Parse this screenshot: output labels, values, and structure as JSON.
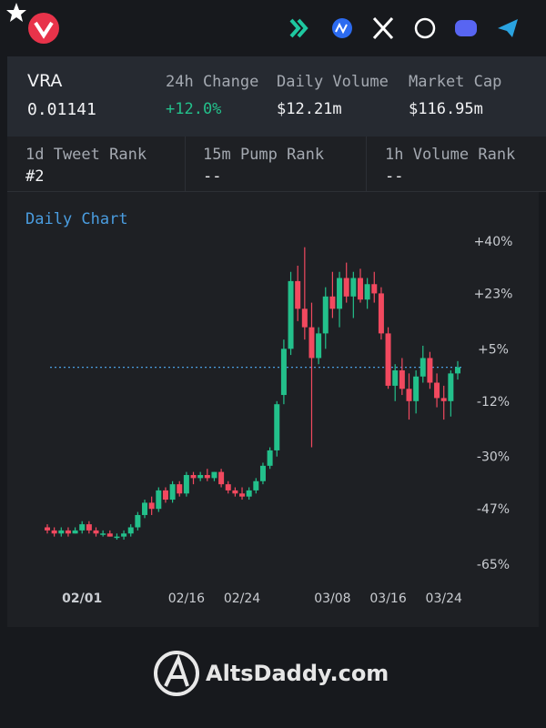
{
  "stats": {
    "symbol": "VRA",
    "price": "0.01141",
    "change_label": "24h Change",
    "change": "+12.0%",
    "volume_label": "Daily Volume",
    "volume": "$12.21m",
    "cap_label": "Market Cap",
    "cap": "$116.95m"
  },
  "ranks": [
    {
      "label": "1d Tweet Rank",
      "value": "#2"
    },
    {
      "label": "15m Pump Rank",
      "value": "--"
    },
    {
      "label": "1h Volume Rank",
      "value": "--"
    }
  ],
  "chart_data": {
    "type": "candlestick",
    "title": "Daily Chart",
    "categories": [
      null,
      null,
      null,
      null,
      null,
      "02/01",
      null,
      null,
      null,
      null,
      null,
      null,
      null,
      null,
      null,
      null,
      null,
      null,
      null,
      null,
      "02/16",
      null,
      null,
      null,
      null,
      null,
      null,
      null,
      "02/24",
      null,
      null,
      null,
      null,
      null,
      null,
      null,
      null,
      null,
      null,
      null,
      null,
      "03/08",
      null,
      null,
      null,
      null,
      null,
      null,
      null,
      "03/16",
      null,
      null,
      null,
      null,
      null,
      null,
      null,
      "03/24",
      null,
      null
    ],
    "open": [
      -53,
      -54,
      -55,
      -54,
      -55,
      -54,
      -52,
      -54,
      -55,
      -55,
      -56,
      -56,
      -55,
      -53,
      -49,
      -45,
      -47,
      -41,
      -44,
      -39,
      -42,
      -36,
      -37,
      -36,
      -37,
      -35,
      -39,
      -41,
      -42,
      -43,
      -41,
      -38,
      -33,
      -28,
      -10,
      5,
      27,
      18,
      12,
      2,
      10,
      22,
      18,
      28,
      22,
      28,
      21,
      26,
      23,
      10,
      -7,
      -2,
      -8,
      -12,
      -4,
      2,
      -6,
      -11,
      -12,
      -3
    ],
    "high": [
      -52,
      -53,
      -53,
      -53,
      -53,
      -51,
      -51,
      -53,
      -54,
      -54,
      -55,
      -54,
      -52,
      -48,
      -44,
      -43,
      -40,
      -40,
      -38,
      -38,
      -35,
      -35,
      -35,
      -34,
      -35,
      -34,
      -38,
      -40,
      -40,
      -40,
      -37,
      -32,
      -27,
      -12,
      8,
      30,
      32,
      38,
      20,
      12,
      25,
      30,
      30,
      33,
      30,
      31,
      28,
      30,
      25,
      12,
      0,
      2,
      -3,
      -2,
      6,
      4,
      -3,
      -7,
      -2,
      1
    ],
    "low": [
      -55,
      -56,
      -56,
      -56,
      -55,
      -55,
      -55,
      -56,
      -56,
      -56,
      -57,
      -57,
      -56,
      -54,
      -50,
      -49,
      -48,
      -45,
      -45,
      -43,
      -43,
      -39,
      -38,
      -38,
      -38,
      -40,
      -42,
      -43,
      -44,
      -44,
      -42,
      -39,
      -34,
      -30,
      -13,
      3,
      14,
      8,
      -27,
      0,
      5,
      15,
      12,
      20,
      15,
      20,
      18,
      20,
      8,
      -8,
      -12,
      -10,
      -18,
      -16,
      -6,
      -8,
      -14,
      -18,
      -17,
      -5
    ],
    "close": [
      -54,
      -55,
      -54,
      -55,
      -54,
      -52,
      -54,
      -55,
      -55,
      -56,
      -56,
      -55,
      -53,
      -49,
      -45,
      -47,
      -41,
      -44,
      -39,
      -42,
      -36,
      -37,
      -36,
      -37,
      -35,
      -39,
      -41,
      -42,
      -43,
      -41,
      -38,
      -33,
      -28,
      -13,
      5,
      27,
      18,
      12,
      2,
      10,
      22,
      18,
      28,
      22,
      28,
      21,
      26,
      23,
      10,
      -7,
      -2,
      -8,
      -12,
      -4,
      2,
      -6,
      -11,
      -12,
      -3,
      -1
    ],
    "up_color": "#23c08b",
    "down_color": "#f2495f",
    "price_line": -1,
    "ylim": [
      -70,
      45
    ],
    "yticks": [
      {
        "value": 40,
        "label": "+40%"
      },
      {
        "value": 23,
        "label": "+23%"
      },
      {
        "value": 5,
        "label": "+5%"
      },
      {
        "value": -12,
        "label": "-12%"
      },
      {
        "value": -30,
        "label": "-30%"
      },
      {
        "value": -47,
        "label": "-47%"
      },
      {
        "value": -65,
        "label": "-65%"
      }
    ]
  },
  "footer": {
    "brand": "AltsDaddy.com"
  }
}
